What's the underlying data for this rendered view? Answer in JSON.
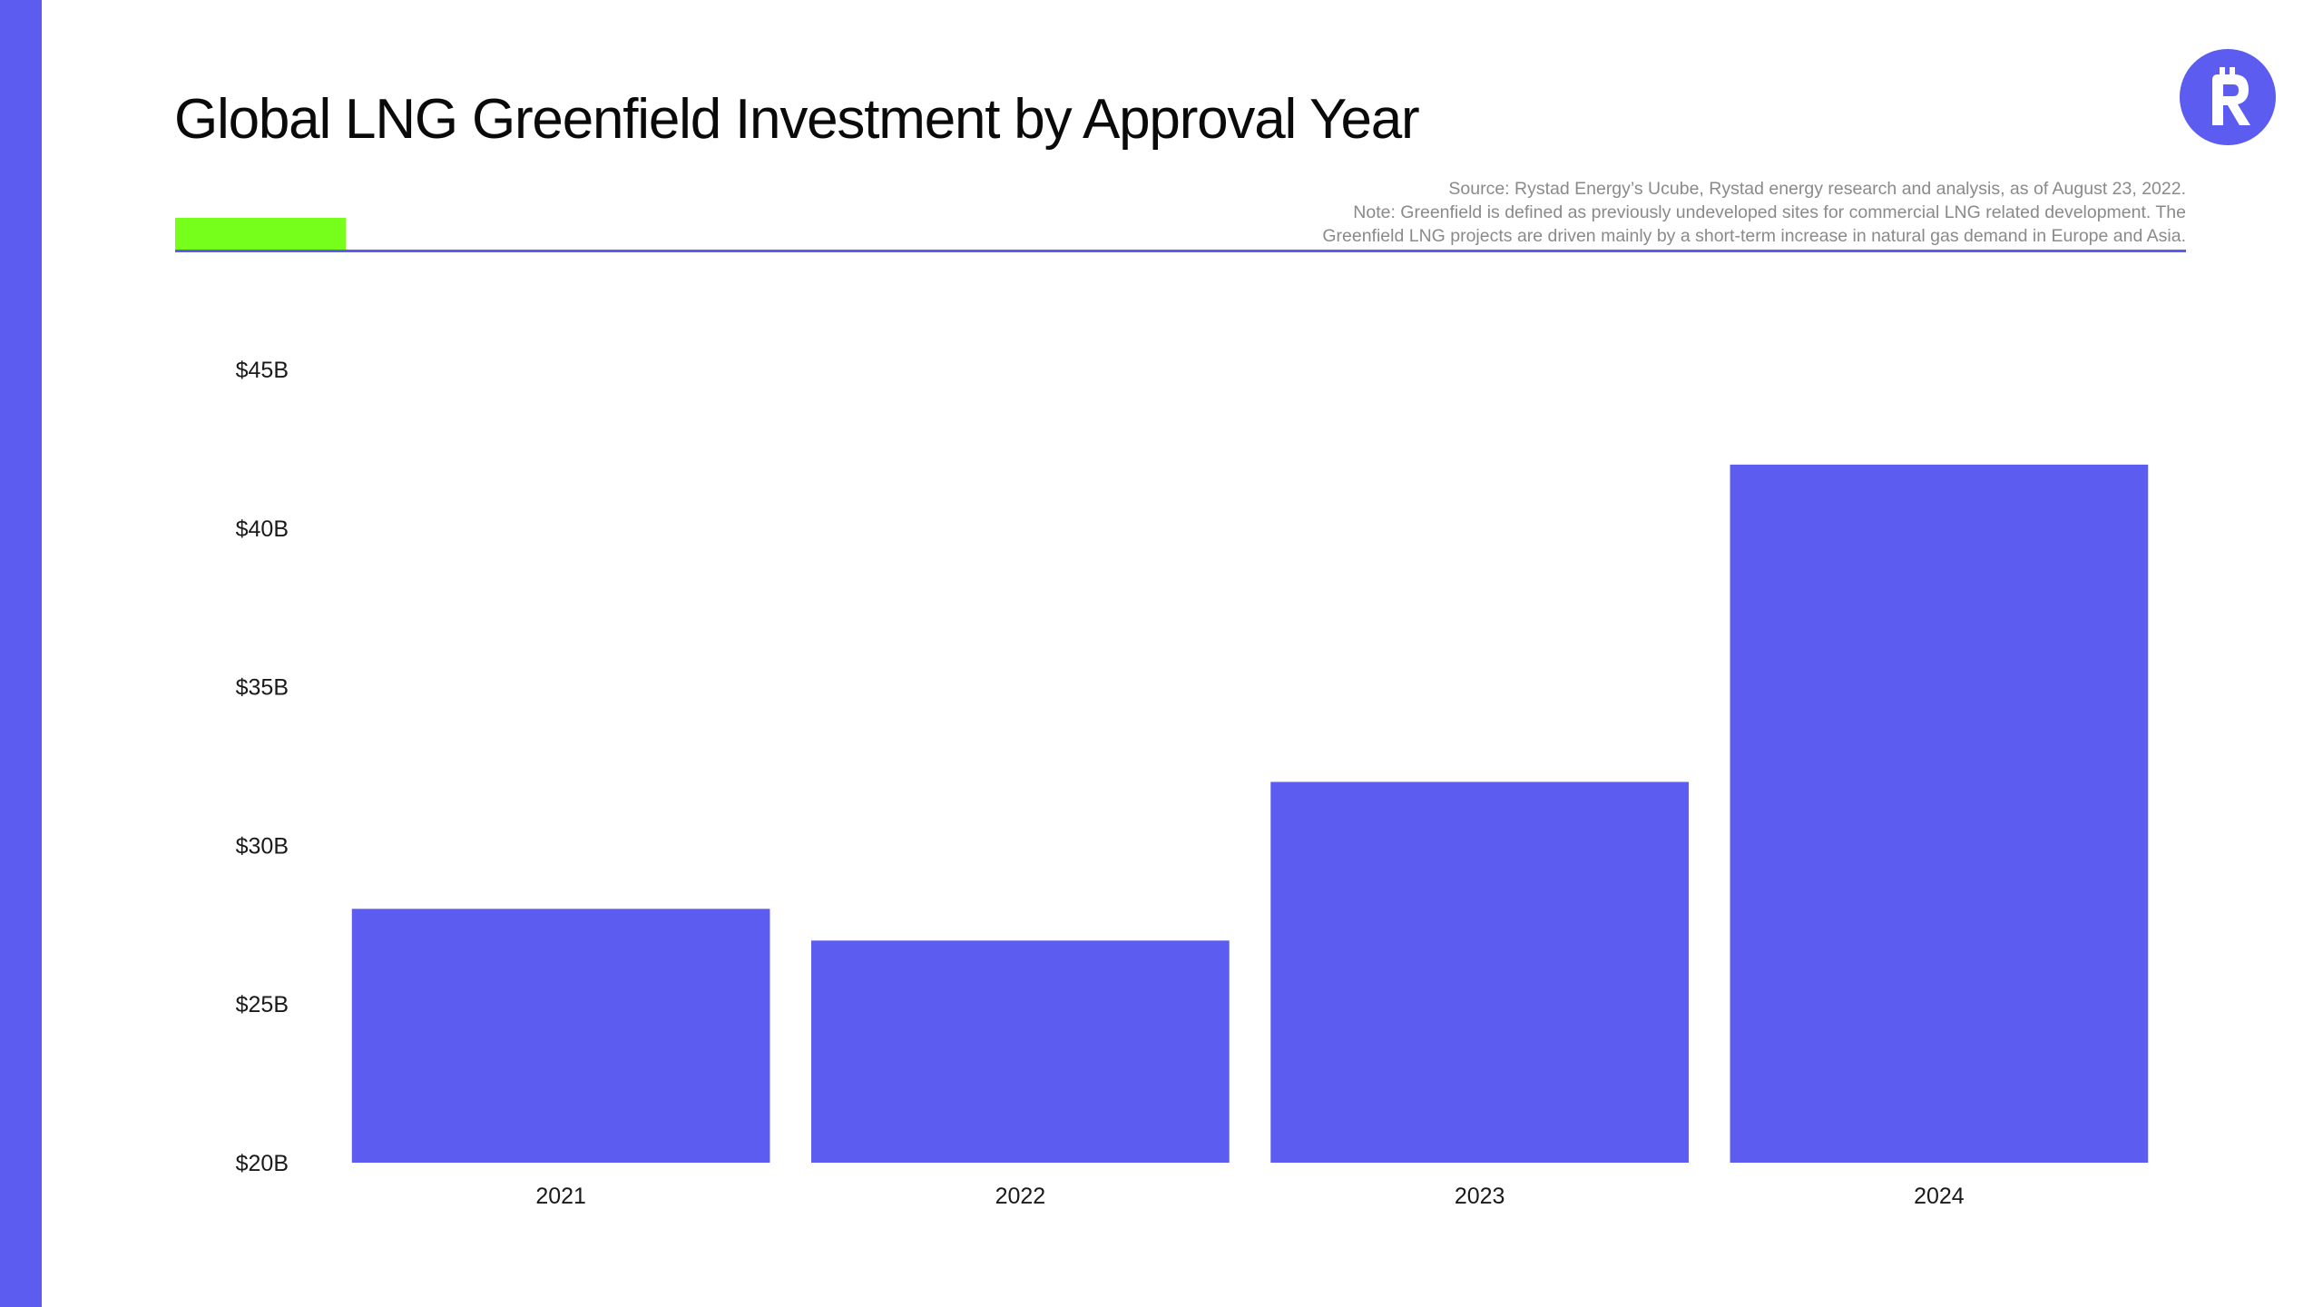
{
  "header": {
    "title": "Global LNG Greenfield Investment by Approval Year",
    "source_lines": [
      "Source: Rystad Energy’s Ucube, Rystad energy research and analysis, as of August 23, 2022.",
      "Note: Greenfield is defined as previously undeveloped sites for commercial LNG related development. The",
      "Greenfield LNG projects are driven mainly by a short-term increase in natural gas demand in Europe and Asia."
    ],
    "logo_icon": "rystad-r-logo-icon"
  },
  "colors": {
    "accent": "#5c5cf0",
    "highlight": "#75ff1a"
  },
  "chart_data": {
    "type": "bar",
    "title": "Global LNG Greenfield Investment by Approval Year",
    "xlabel": "",
    "ylabel": "",
    "categories": [
      "2021",
      "2022",
      "2023",
      "2024"
    ],
    "values": [
      28,
      27,
      32,
      42
    ],
    "unit": "B USD",
    "ylim": [
      20,
      45
    ],
    "y_ticks": [
      20,
      25,
      30,
      35,
      40,
      45
    ],
    "y_tick_labels": [
      "$20B",
      "$25B",
      "$30B",
      "$35B",
      "$40B",
      "$45B"
    ],
    "bar_color": "#5c5cf0",
    "grid": false,
    "legend": "none"
  }
}
